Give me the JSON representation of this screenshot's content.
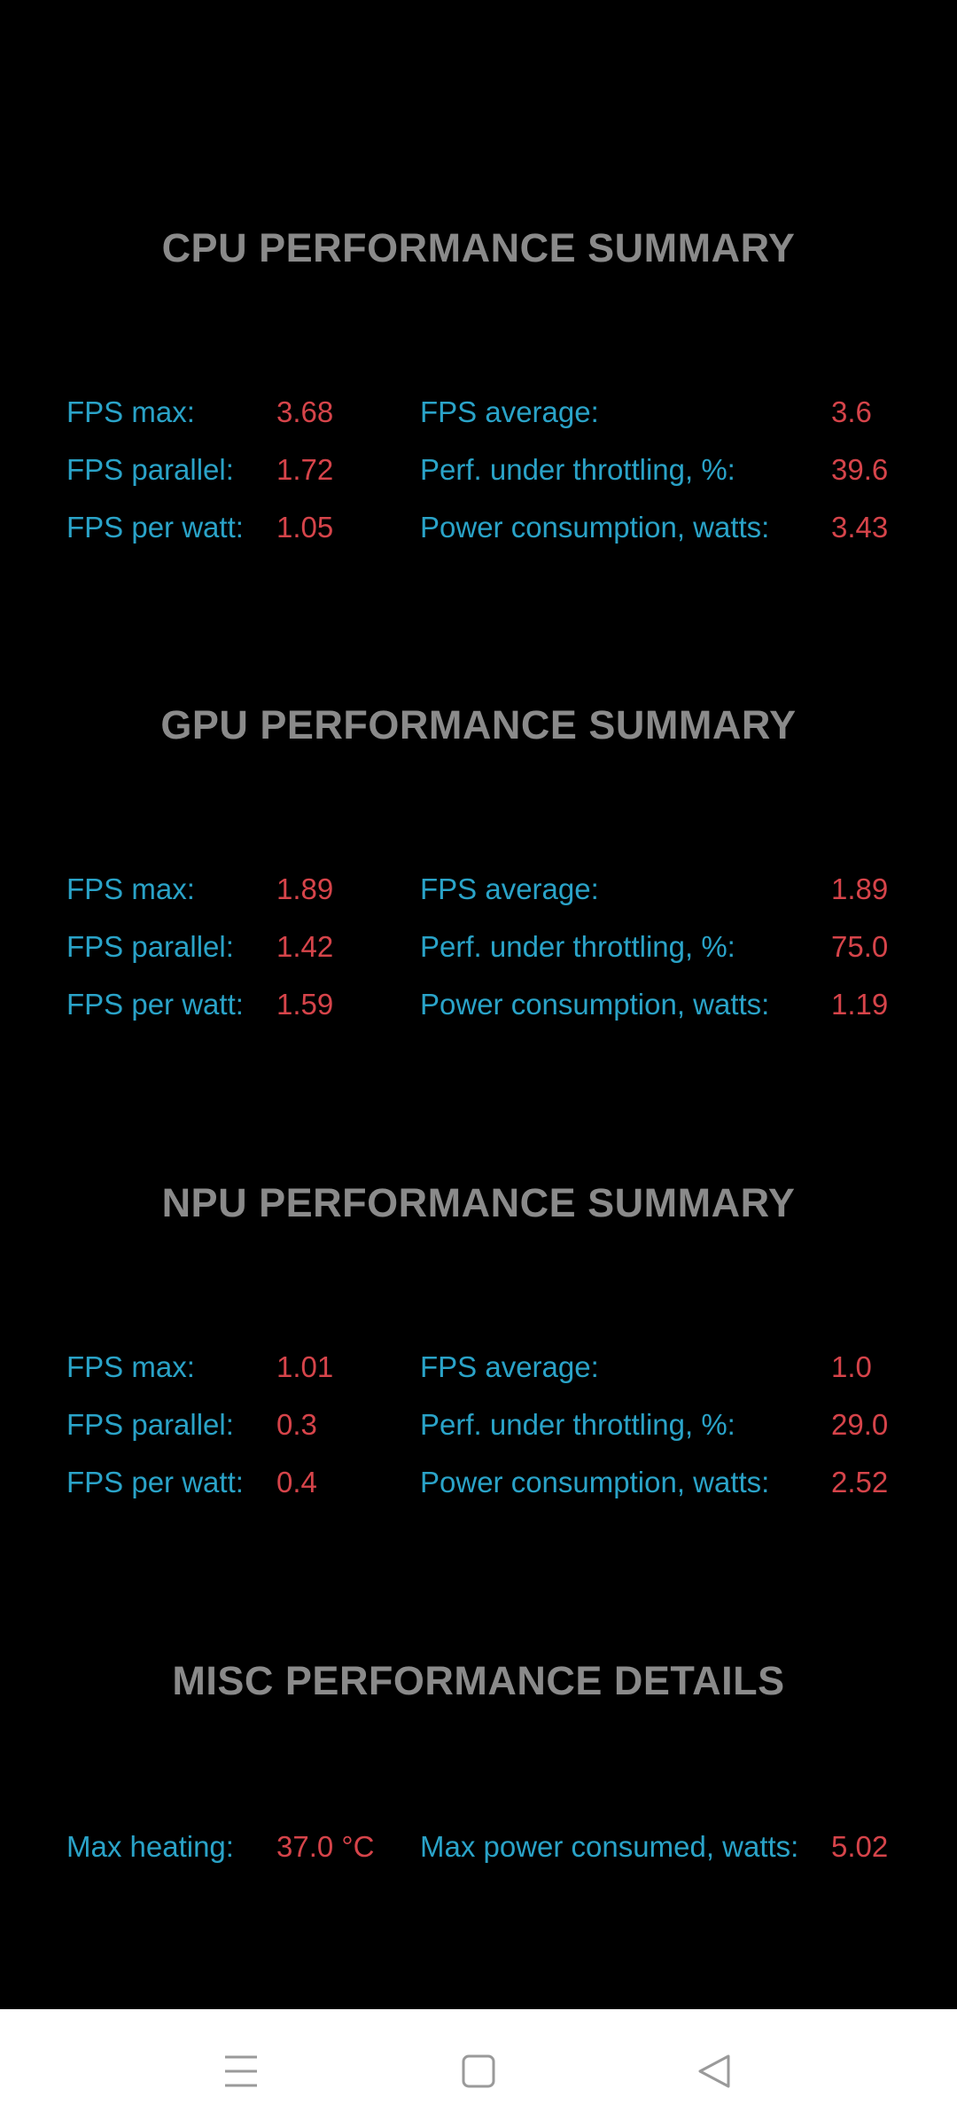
{
  "cpu": {
    "title": "CPU PERFORMANCE SUMMARY",
    "rows": [
      {
        "label_left": "FPS max:",
        "value_left": "3.68",
        "label_right": "FPS average:",
        "value_right": "3.6"
      },
      {
        "label_left": "FPS parallel:",
        "value_left": "1.72",
        "label_right": "Perf. under throttling, %:",
        "value_right": "39.6"
      },
      {
        "label_left": "FPS per watt:",
        "value_left": "1.05",
        "label_right": "Power consumption, watts:",
        "value_right": "3.43"
      }
    ]
  },
  "gpu": {
    "title": "GPU PERFORMANCE SUMMARY",
    "rows": [
      {
        "label_left": "FPS max:",
        "value_left": "1.89",
        "label_right": "FPS average:",
        "value_right": "1.89"
      },
      {
        "label_left": "FPS parallel:",
        "value_left": "1.42",
        "label_right": "Perf. under throttling, %:",
        "value_right": "75.0"
      },
      {
        "label_left": "FPS per watt:",
        "value_left": "1.59",
        "label_right": "Power consumption, watts:",
        "value_right": "1.19"
      }
    ]
  },
  "npu": {
    "title": "NPU PERFORMANCE SUMMARY",
    "rows": [
      {
        "label_left": "FPS max:",
        "value_left": "1.01",
        "label_right": "FPS average:",
        "value_right": "1.0"
      },
      {
        "label_left": "FPS parallel:",
        "value_left": "0.3",
        "label_right": "Perf. under throttling, %:",
        "value_right": "29.0"
      },
      {
        "label_left": "FPS per watt:",
        "value_left": "0.4",
        "label_right": "Power consumption, watts:",
        "value_right": "2.52"
      }
    ]
  },
  "misc": {
    "title": "MISC PERFORMANCE DETAILS",
    "rows": [
      {
        "label_left": "Max heating:",
        "value_left": "37.0 °C",
        "label_right": "Max power consumed, watts:",
        "value_right": "5.02"
      }
    ]
  },
  "navbar": {
    "icons": [
      "menu-icon",
      "home-icon",
      "back-icon"
    ]
  },
  "colors": {
    "background": "#000000",
    "title": "#8a8a8a",
    "label": "#2aa3c8",
    "value": "#d6444a",
    "navbar": "#ffffff"
  }
}
